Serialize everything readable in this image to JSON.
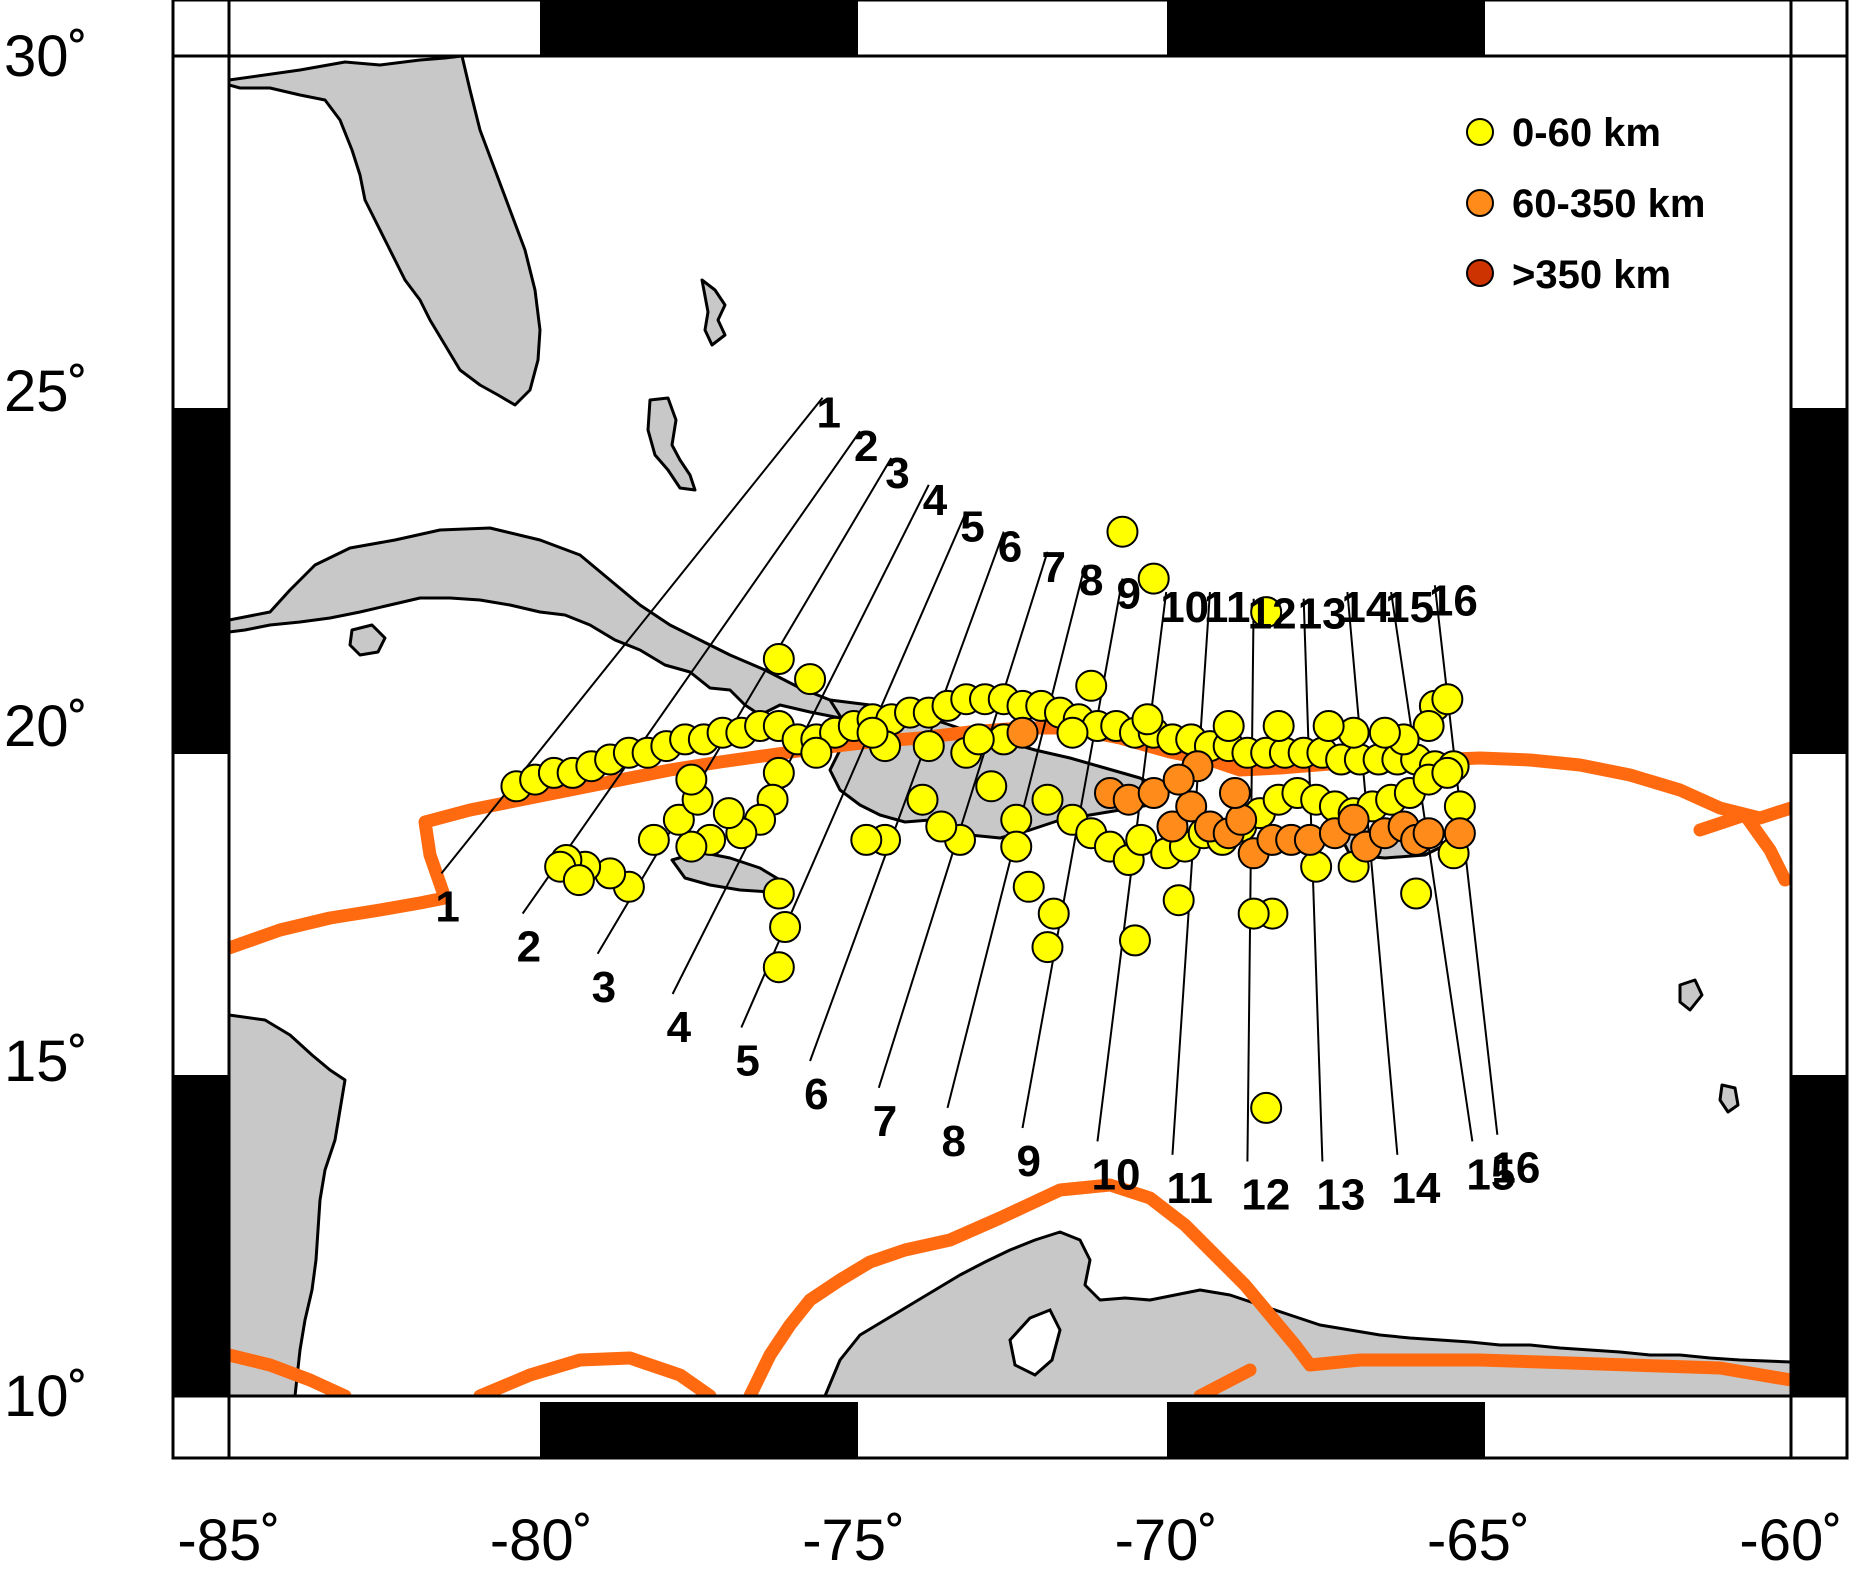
{
  "map": {
    "lon_range": [
      -85,
      -60
    ],
    "lat_range": [
      10,
      30
    ],
    "lon_ticks": [
      {
        "value": -85,
        "label": "-85˚"
      },
      {
        "value": -80,
        "label": "-80˚"
      },
      {
        "value": -75,
        "label": "-75˚"
      },
      {
        "value": -70,
        "label": "-70˚"
      },
      {
        "value": -65,
        "label": "-65˚"
      },
      {
        "value": -60,
        "label": "-60˚"
      }
    ],
    "lat_ticks": [
      {
        "value": 30,
        "label": "30˚"
      },
      {
        "value": 25,
        "label": "25˚"
      },
      {
        "value": 20,
        "label": "20˚"
      },
      {
        "value": 15,
        "label": "15˚"
      },
      {
        "value": 10,
        "label": "10˚"
      }
    ],
    "colors": {
      "land": "#c8c8c8",
      "plate_boundary": "#ff6a10",
      "shallow": "#ffff00",
      "intermediate": "#ff8c1a",
      "deep": "#cc3300"
    }
  },
  "legend": [
    {
      "label": "0-60 km",
      "color": "#ffff00"
    },
    {
      "label": "60-350 km",
      "color": "#ff8c1a"
    },
    {
      "label": ">350 km",
      "color": "#cc3300"
    }
  ],
  "profiles": [
    {
      "id": "1",
      "start": [
        -75.5,
        24.9
      ],
      "end": [
        -81.6,
        17.8
      ]
    },
    {
      "id": "2",
      "start": [
        -74.9,
        24.4
      ],
      "end": [
        -80.3,
        17.2
      ]
    },
    {
      "id": "3",
      "start": [
        -74.4,
        24.0
      ],
      "end": [
        -79.1,
        16.6
      ]
    },
    {
      "id": "4",
      "start": [
        -73.8,
        23.6
      ],
      "end": [
        -77.9,
        16.0
      ]
    },
    {
      "id": "5",
      "start": [
        -73.2,
        23.2
      ],
      "end": [
        -76.8,
        15.5
      ]
    },
    {
      "id": "6",
      "start": [
        -72.6,
        22.9
      ],
      "end": [
        -75.7,
        15.0
      ]
    },
    {
      "id": "7",
      "start": [
        -71.9,
        22.6
      ],
      "end": [
        -74.6,
        14.6
      ]
    },
    {
      "id": "8",
      "start": [
        -71.3,
        22.4
      ],
      "end": [
        -73.5,
        14.3
      ]
    },
    {
      "id": "9",
      "start": [
        -70.7,
        22.2
      ],
      "end": [
        -72.3,
        14.0
      ]
    },
    {
      "id": "10",
      "start": [
        -70.0,
        22.0
      ],
      "end": [
        -71.1,
        13.8
      ]
    },
    {
      "id": "11",
      "start": [
        -69.3,
        22.0
      ],
      "end": [
        -69.9,
        13.6
      ]
    },
    {
      "id": "12",
      "start": [
        -68.6,
        21.9
      ],
      "end": [
        -68.7,
        13.5
      ]
    },
    {
      "id": "13",
      "start": [
        -67.8,
        21.9
      ],
      "end": [
        -67.5,
        13.5
      ]
    },
    {
      "id": "14",
      "start": [
        -67.1,
        22.0
      ],
      "end": [
        -66.3,
        13.6
      ]
    },
    {
      "id": "15",
      "start": [
        -66.4,
        22.0
      ],
      "end": [
        -65.1,
        13.8
      ]
    },
    {
      "id": "16",
      "start": [
        -65.7,
        22.1
      ],
      "end": [
        -64.7,
        13.9
      ]
    }
  ],
  "earthquakes": {
    "shallow": [
      [
        -80.4,
        19.1
      ],
      [
        -80.1,
        19.2
      ],
      [
        -79.8,
        19.3
      ],
      [
        -79.5,
        19.3
      ],
      [
        -79.2,
        19.4
      ],
      [
        -78.9,
        19.5
      ],
      [
        -78.6,
        19.6
      ],
      [
        -78.3,
        19.6
      ],
      [
        -78.0,
        19.7
      ],
      [
        -77.7,
        19.8
      ],
      [
        -77.4,
        19.8
      ],
      [
        -77.1,
        19.9
      ],
      [
        -76.8,
        19.9
      ],
      [
        -76.5,
        20.0
      ],
      [
        -76.2,
        20.0
      ],
      [
        -75.9,
        19.8
      ],
      [
        -75.6,
        19.8
      ],
      [
        -75.3,
        19.9
      ],
      [
        -75.0,
        20.0
      ],
      [
        -74.7,
        20.1
      ],
      [
        -74.4,
        20.1
      ],
      [
        -74.1,
        20.2
      ],
      [
        -73.8,
        20.2
      ],
      [
        -73.5,
        20.3
      ],
      [
        -73.2,
        20.4
      ],
      [
        -72.9,
        20.4
      ],
      [
        -72.6,
        20.4
      ],
      [
        -72.3,
        20.3
      ],
      [
        -72.0,
        20.3
      ],
      [
        -71.7,
        20.2
      ],
      [
        -71.4,
        20.1
      ],
      [
        -71.1,
        20.0
      ],
      [
        -70.8,
        20.0
      ],
      [
        -70.5,
        19.9
      ],
      [
        -70.2,
        19.9
      ],
      [
        -69.9,
        19.8
      ],
      [
        -69.6,
        19.8
      ],
      [
        -69.3,
        19.7
      ],
      [
        -69.0,
        19.7
      ],
      [
        -68.7,
        19.6
      ],
      [
        -68.4,
        19.6
      ],
      [
        -68.1,
        19.6
      ],
      [
        -67.8,
        19.6
      ],
      [
        -67.5,
        19.6
      ],
      [
        -67.2,
        19.5
      ],
      [
        -66.9,
        19.5
      ],
      [
        -66.6,
        19.5
      ],
      [
        -66.3,
        19.5
      ],
      [
        -66.0,
        19.5
      ],
      [
        -65.7,
        19.4
      ],
      [
        -65.4,
        19.4
      ],
      [
        -76.2,
        21.0
      ],
      [
        -75.7,
        20.7
      ],
      [
        -73.2,
        19.6
      ],
      [
        -72.8,
        19.1
      ],
      [
        -72.4,
        18.6
      ],
      [
        -71.9,
        18.9
      ],
      [
        -71.5,
        18.6
      ],
      [
        -71.2,
        18.4
      ],
      [
        -70.9,
        18.2
      ],
      [
        -70.6,
        18.0
      ],
      [
        -70.4,
        18.3
      ],
      [
        -70.0,
        18.1
      ],
      [
        -69.7,
        18.2
      ],
      [
        -69.4,
        18.4
      ],
      [
        -69.1,
        18.3
      ],
      [
        -68.8,
        18.5
      ],
      [
        -68.5,
        18.7
      ],
      [
        -68.2,
        18.9
      ],
      [
        -67.9,
        19.0
      ],
      [
        -67.6,
        18.9
      ],
      [
        -67.3,
        18.8
      ],
      [
        -67.0,
        18.7
      ],
      [
        -66.7,
        18.8
      ],
      [
        -66.4,
        18.9
      ],
      [
        -66.1,
        19.0
      ],
      [
        -65.8,
        19.2
      ],
      [
        -65.5,
        19.3
      ],
      [
        -65.3,
        18.8
      ],
      [
        -65.4,
        18.1
      ],
      [
        -66.0,
        17.5
      ],
      [
        -67.0,
        17.9
      ],
      [
        -67.6,
        17.9
      ],
      [
        -68.3,
        17.2
      ],
      [
        -68.6,
        17.2
      ],
      [
        -69.8,
        17.4
      ],
      [
        -70.5,
        16.8
      ],
      [
        -71.8,
        17.2
      ],
      [
        -71.9,
        16.7
      ],
      [
        -72.2,
        17.6
      ],
      [
        -72.4,
        18.2
      ],
      [
        -73.3,
        18.3
      ],
      [
        -73.6,
        18.5
      ],
      [
        -73.9,
        18.9
      ],
      [
        -74.5,
        18.3
      ],
      [
        -74.8,
        18.3
      ],
      [
        -75.6,
        19.6
      ],
      [
        -76.2,
        19.3
      ],
      [
        -76.3,
        18.9
      ],
      [
        -76.5,
        18.6
      ],
      [
        -76.8,
        18.4
      ],
      [
        -77.0,
        18.7
      ],
      [
        -77.3,
        18.3
      ],
      [
        -77.6,
        18.2
      ],
      [
        -77.8,
        18.6
      ],
      [
        -78.2,
        18.3
      ],
      [
        -78.6,
        17.6
      ],
      [
        -78.9,
        17.8
      ],
      [
        -79.3,
        17.9
      ],
      [
        -79.6,
        18.0
      ],
      [
        -79.7,
        17.9
      ],
      [
        -79.4,
        17.7
      ],
      [
        -76.2,
        17.5
      ],
      [
        -76.1,
        17.0
      ],
      [
        -76.2,
        16.4
      ],
      [
        -77.5,
        18.9
      ],
      [
        -77.6,
        19.2
      ],
      [
        -70.7,
        22.9
      ],
      [
        -70.2,
        22.2
      ],
      [
        -68.4,
        21.7
      ],
      [
        -68.4,
        14.3
      ],
      [
        -71.2,
        20.6
      ],
      [
        -65.7,
        20.3
      ],
      [
        -65.5,
        20.4
      ],
      [
        -65.8,
        20.0
      ],
      [
        -66.2,
        19.8
      ],
      [
        -66.5,
        19.9
      ],
      [
        -67.0,
        19.9
      ],
      [
        -67.4,
        20.0
      ],
      [
        -68.2,
        20.0
      ],
      [
        -69.0,
        20.0
      ],
      [
        -70.3,
        20.1
      ],
      [
        -71.5,
        19.9
      ],
      [
        -72.6,
        19.8
      ],
      [
        -73.0,
        19.8
      ],
      [
        -73.8,
        19.7
      ],
      [
        -74.5,
        19.7
      ],
      [
        -74.7,
        19.9
      ]
    ],
    "intermediate": [
      [
        -72.3,
        19.9
      ],
      [
        -70.9,
        19.0
      ],
      [
        -70.6,
        18.9
      ],
      [
        -70.2,
        19.0
      ],
      [
        -69.9,
        18.5
      ],
      [
        -69.6,
        18.8
      ],
      [
        -69.3,
        18.5
      ],
      [
        -69.0,
        18.4
      ],
      [
        -68.8,
        18.6
      ],
      [
        -68.6,
        18.1
      ],
      [
        -68.3,
        18.3
      ],
      [
        -68.0,
        18.3
      ],
      [
        -67.7,
        18.3
      ],
      [
        -67.3,
        18.4
      ],
      [
        -67.0,
        18.6
      ],
      [
        -66.8,
        18.2
      ],
      [
        -66.5,
        18.4
      ],
      [
        -66.2,
        18.5
      ],
      [
        -66.0,
        18.3
      ],
      [
        -65.8,
        18.4
      ],
      [
        -65.3,
        18.4
      ],
      [
        -69.5,
        19.4
      ],
      [
        -69.8,
        19.2
      ],
      [
        -68.9,
        19.0
      ]
    ],
    "deep": []
  }
}
